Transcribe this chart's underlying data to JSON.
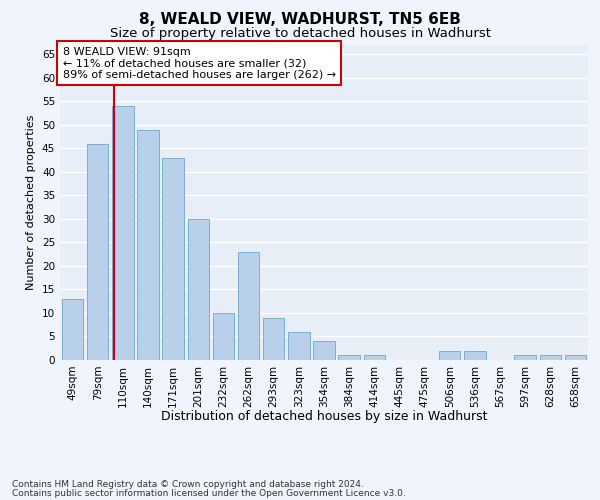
{
  "title1": "8, WEALD VIEW, WADHURST, TN5 6EB",
  "title2": "Size of property relative to detached houses in Wadhurst",
  "xlabel": "Distribution of detached houses by size in Wadhurst",
  "ylabel": "Number of detached properties",
  "categories": [
    "49sqm",
    "79sqm",
    "110sqm",
    "140sqm",
    "171sqm",
    "201sqm",
    "232sqm",
    "262sqm",
    "293sqm",
    "323sqm",
    "354sqm",
    "384sqm",
    "414sqm",
    "445sqm",
    "475sqm",
    "506sqm",
    "536sqm",
    "567sqm",
    "597sqm",
    "628sqm",
    "658sqm"
  ],
  "values": [
    13,
    46,
    54,
    49,
    43,
    30,
    10,
    23,
    9,
    6,
    4,
    1,
    1,
    0,
    0,
    2,
    2,
    0,
    1,
    1,
    1
  ],
  "bar_color": "#b8d0ea",
  "bar_edge_color": "#7aafd4",
  "red_line_index": 1.65,
  "annotation_title": "8 WEALD VIEW: 91sqm",
  "annotation_line1": "← 11% of detached houses are smaller (32)",
  "annotation_line2": "89% of semi-detached houses are larger (262) →",
  "annotation_box_color": "#ffffff",
  "annotation_box_edge": "#cc0000",
  "red_line_color": "#cc0000",
  "ylim": [
    0,
    67
  ],
  "yticks": [
    0,
    5,
    10,
    15,
    20,
    25,
    30,
    35,
    40,
    45,
    50,
    55,
    60,
    65
  ],
  "footer1": "Contains HM Land Registry data © Crown copyright and database right 2024.",
  "footer2": "Contains public sector information licensed under the Open Government Licence v3.0.",
  "bg_color": "#e8eef8",
  "grid_color": "#ffffff",
  "title1_fontsize": 11,
  "title2_fontsize": 9.5,
  "xlabel_fontsize": 9,
  "ylabel_fontsize": 8,
  "tick_fontsize": 7.5,
  "annotation_fontsize": 8,
  "footer_fontsize": 6.5
}
